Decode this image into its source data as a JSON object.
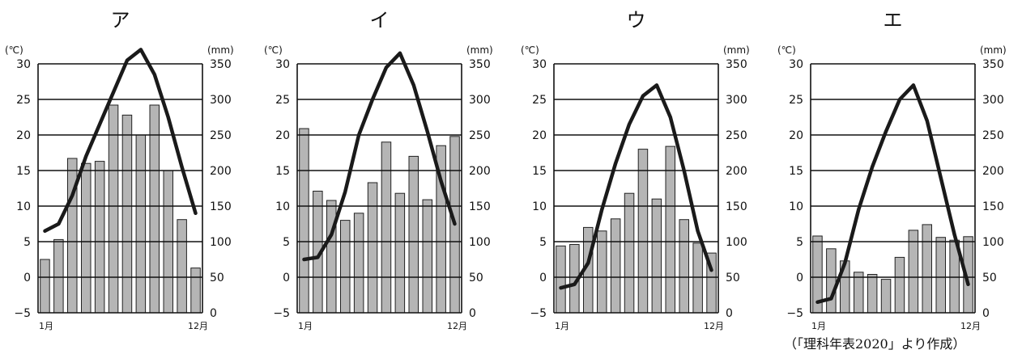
{
  "source_note": "（「理科年表2020」より作成）",
  "chart_data": [
    {
      "type": "bar+line",
      "title": "ア",
      "temp_unit": "(℃)",
      "precip_unit": "(mm)",
      "temp_ylim": [
        -5,
        30
      ],
      "temp_ticks": [
        "30",
        "25",
        "20",
        "15",
        "10",
        "5",
        "0",
        "−5"
      ],
      "precip_ylim": [
        0,
        350
      ],
      "precip_ticks": [
        "350",
        "300",
        "250",
        "200",
        "150",
        "100",
        "50",
        "0"
      ],
      "x_first_label": "1月",
      "x_last_label": "12月",
      "months": [
        1,
        2,
        3,
        4,
        5,
        6,
        7,
        8,
        9,
        10,
        11,
        12
      ],
      "precipitation_mm": [
        75,
        103,
        217,
        210,
        213,
        292,
        278,
        250,
        292,
        200,
        131,
        63
      ],
      "temperature_c": [
        6.5,
        7.5,
        11.5,
        17.0,
        21.5,
        26.0,
        30.5,
        32.0,
        28.5,
        22.5,
        15.5,
        9.0
      ]
    },
    {
      "type": "bar+line",
      "title": "イ",
      "temp_unit": "(℃)",
      "precip_unit": "(mm)",
      "temp_ylim": [
        -5,
        30
      ],
      "temp_ticks": [
        "30",
        "25",
        "20",
        "15",
        "10",
        "5",
        "0",
        "−5"
      ],
      "precip_ylim": [
        0,
        350
      ],
      "precip_ticks": [
        "350",
        "300",
        "250",
        "200",
        "150",
        "100",
        "50",
        "0"
      ],
      "x_first_label": "1月",
      "x_last_label": "12月",
      "months": [
        1,
        2,
        3,
        4,
        5,
        6,
        7,
        8,
        9,
        10,
        11,
        12
      ],
      "precipitation_mm": [
        259,
        171,
        158,
        130,
        140,
        183,
        240,
        168,
        220,
        159,
        235,
        248
      ],
      "temperature_c": [
        2.5,
        2.8,
        6.0,
        12.0,
        20.0,
        25.0,
        29.5,
        31.5,
        27.0,
        20.5,
        13.5,
        7.5
      ]
    },
    {
      "type": "bar+line",
      "title": "ウ",
      "temp_unit": "(℃)",
      "precip_unit": "(mm)",
      "temp_ylim": [
        -5,
        30
      ],
      "temp_ticks": [
        "30",
        "25",
        "20",
        "15",
        "10",
        "5",
        "0",
        "−5"
      ],
      "precip_ylim": [
        0,
        350
      ],
      "precip_ticks": [
        "350",
        "300",
        "250",
        "200",
        "150",
        "100",
        "50",
        "0"
      ],
      "x_first_label": "1月",
      "x_last_label": "12月",
      "months": [
        1,
        2,
        3,
        4,
        5,
        6,
        7,
        8,
        9,
        10,
        11,
        12
      ],
      "precipitation_mm": [
        94,
        96,
        120,
        115,
        132,
        168,
        230,
        160,
        234,
        131,
        98,
        84
      ],
      "temperature_c": [
        -1.5,
        -1.0,
        2.0,
        9.5,
        16.0,
        21.5,
        25.5,
        27.0,
        22.5,
        15.0,
        6.5,
        1.0
      ]
    },
    {
      "type": "bar+line",
      "title": "エ",
      "temp_unit": "(℃)",
      "precip_unit": "(mm)",
      "temp_ylim": [
        -5,
        30
      ],
      "temp_ticks": [
        "30",
        "25",
        "20",
        "15",
        "10",
        "5",
        "0",
        "−5"
      ],
      "precip_ylim": [
        0,
        350
      ],
      "precip_ticks": [
        "350",
        "300",
        "250",
        "200",
        "150",
        "100",
        "50",
        "0"
      ],
      "x_first_label": "1月",
      "x_last_label": "12月",
      "months": [
        1,
        2,
        3,
        4,
        5,
        6,
        7,
        8,
        9,
        10,
        11,
        12
      ],
      "precipitation_mm": [
        108,
        90,
        73,
        57,
        54,
        47,
        78,
        116,
        124,
        106,
        102,
        107
      ],
      "temperature_c": [
        -3.5,
        -3.0,
        2.0,
        9.5,
        15.5,
        20.5,
        25.0,
        27.0,
        22.0,
        14.0,
        6.0,
        -1.0
      ]
    }
  ]
}
